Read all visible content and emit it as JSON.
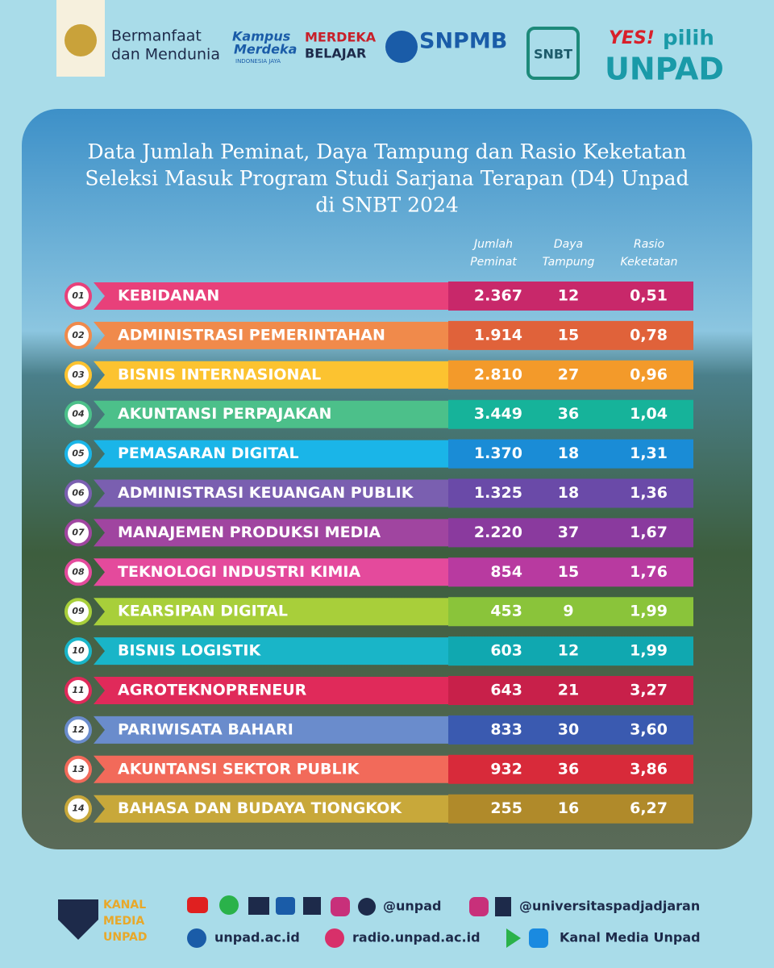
{
  "header": {
    "tagline": [
      "Bermanfaat",
      "dan Mendunia"
    ],
    "kampus": [
      "Kampus",
      "Merdeka",
      "INDONESIA JAYA"
    ],
    "merdeka": [
      "MERDEKA",
      "BELAJAR"
    ],
    "snpmb": "SNPMB",
    "snbt": "SNBT",
    "yes": "YES!",
    "pilih": "pilih",
    "unpad": "UNPAD"
  },
  "title": [
    "Data Jumlah Peminat, Daya Tampung dan Rasio Keketatan",
    "Seleksi Masuk Program Studi Sarjana Terapan (D4) Unpad",
    "di SNBT 2024"
  ],
  "columns": [
    [
      "Jumlah",
      "Peminat"
    ],
    [
      "Daya",
      "Tampung"
    ],
    [
      "Rasio",
      "Keketatan"
    ]
  ],
  "rows": [
    [
      "01",
      "KEBIDANAN",
      "2.367",
      "12",
      "0,51"
    ],
    [
      "02",
      "ADMINISTRASI PEMERINTAHAN",
      "1.914",
      "15",
      "0,78"
    ],
    [
      "03",
      "BISNIS INTERNASIONAL",
      "2.810",
      "27",
      "0,96"
    ],
    [
      "04",
      "AKUNTANSI PERPAJAKAN",
      "3.449",
      "36",
      "1,04"
    ],
    [
      "05",
      "PEMASARAN DIGITAL",
      "1.370",
      "18",
      "1,31"
    ],
    [
      "06",
      "ADMINISTRASI KEUANGAN PUBLIK",
      "1.325",
      "18",
      "1,36"
    ],
    [
      "07",
      "MANAJEMEN PRODUKSI MEDIA",
      "2.220",
      "37",
      "1,67"
    ],
    [
      "08",
      "TEKNOLOGI INDUSTRI KIMIA",
      "854",
      "15",
      "1,76"
    ],
    [
      "09",
      "KEARSIPAN DIGITAL",
      "453",
      "9",
      "1,99"
    ],
    [
      "10",
      "BISNIS LOGISTIK",
      "603",
      "12",
      "1,99"
    ],
    [
      "11",
      "AGROTEKNOPRENEUR",
      "643",
      "21",
      "3,27"
    ],
    [
      "12",
      "PARIWISATA BAHARI",
      "833",
      "30",
      "3,60"
    ],
    [
      "13",
      "AKUNTANSI SEKTOR PUBLIK",
      "932",
      "36",
      "3,86"
    ],
    [
      "14",
      "BAHASA DAN BUDAYA TIONGKOK",
      "255",
      "16",
      "6,27"
    ]
  ],
  "footer": {
    "kanal": [
      "KANAL",
      "MEDIA",
      "UNPAD"
    ],
    "handle1": "@unpad",
    "handle2": "@universitaspadjadjaran",
    "web": "unpad.ac.id",
    "radio": "radio.unpad.ac.id",
    "app": "Kanal Media Unpad"
  }
}
